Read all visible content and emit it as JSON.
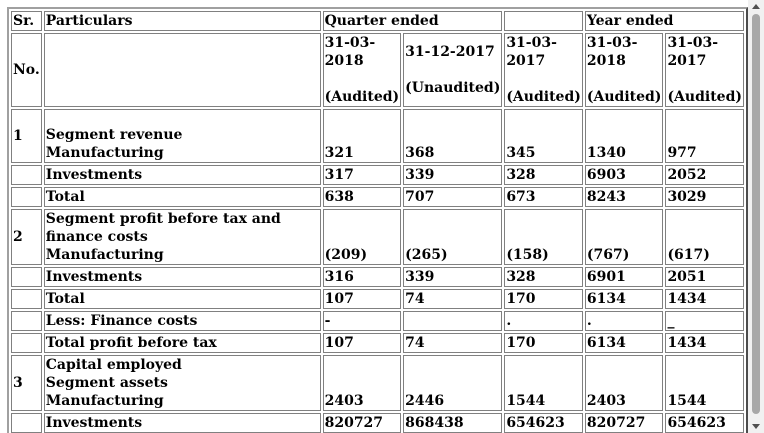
{
  "header": {
    "sr": "Sr.",
    "no": "No.",
    "particulars": "Particulars",
    "quarter_ended": "Quarter ended",
    "year_ended": "Year ended",
    "dates": [
      "31-03-2018",
      "31-12-2017",
      "31-03-2017",
      "31-03-2018",
      "31-03-2017"
    ],
    "status": [
      "(Audited)",
      "(Unaudited)",
      "(Audited)",
      "(Audited)",
      "(Audited)"
    ]
  },
  "rows": [
    {
      "sr": "1",
      "label_lines": [
        "Segment revenue",
        "Manufacturing"
      ],
      "values": [
        "321",
        "368",
        "345",
        "1340",
        "977"
      ]
    },
    {
      "sr": "",
      "label_lines": [
        "Investments"
      ],
      "values": [
        "317",
        "339",
        "328",
        "6903",
        "2052"
      ]
    },
    {
      "sr": "",
      "label_lines": [
        "Total"
      ],
      "values": [
        "638",
        "707",
        "673",
        "8243",
        "3029"
      ]
    },
    {
      "sr": "2",
      "label_lines": [
        "Segment profit before tax and finance costs",
        "Manufacturing"
      ],
      "values": [
        "(209)",
        "(265)",
        "(158)",
        "(767)",
        "(617)"
      ]
    },
    {
      "sr": "",
      "label_lines": [
        "Investments"
      ],
      "values": [
        "316",
        "339",
        "328",
        "6901",
        "2051"
      ]
    },
    {
      "sr": "",
      "label_lines": [
        "Total"
      ],
      "values": [
        "107",
        "74",
        "170",
        "6134",
        "1434"
      ]
    },
    {
      "sr": "",
      "label_lines": [
        "Less: Finance costs"
      ],
      "values": [
        "-",
        "",
        ".",
        ".",
        "_"
      ]
    },
    {
      "sr": "",
      "label_lines": [
        "Total profit before tax"
      ],
      "values": [
        "107",
        "74",
        "170",
        "6134",
        "1434"
      ]
    },
    {
      "sr": "3",
      "label_lines": [
        "Capital employed",
        "Segment assets",
        "Manufacturing"
      ],
      "values": [
        "2403",
        "2446",
        "1544",
        "2403",
        "1544"
      ]
    },
    {
      "sr": "",
      "label_lines": [
        "Investments"
      ],
      "values": [
        "820727",
        "868438",
        "654623",
        "820727",
        "654623"
      ]
    }
  ]
}
